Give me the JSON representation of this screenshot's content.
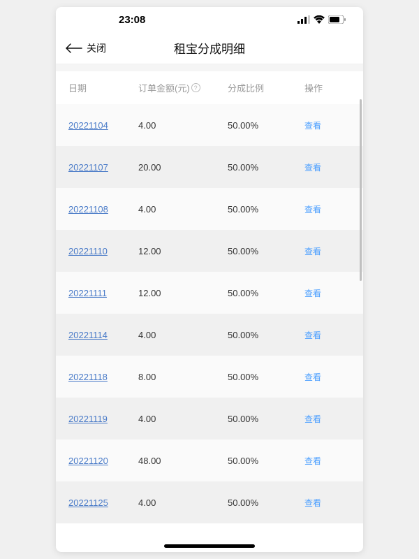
{
  "status_bar": {
    "time": "23:08"
  },
  "nav": {
    "close_label": "关闭",
    "title": "租宝分成明细"
  },
  "table": {
    "columns": {
      "date": "日期",
      "amount": "订单金额(元)",
      "ratio": "分成比例",
      "action": "操作"
    },
    "action_label": "查看",
    "rows": [
      {
        "date": "20221104",
        "amount": "4.00",
        "ratio": "50.00%"
      },
      {
        "date": "20221107",
        "amount": "20.00",
        "ratio": "50.00%"
      },
      {
        "date": "20221108",
        "amount": "4.00",
        "ratio": "50.00%"
      },
      {
        "date": "20221110",
        "amount": "12.00",
        "ratio": "50.00%"
      },
      {
        "date": "20221111",
        "amount": "12.00",
        "ratio": "50.00%"
      },
      {
        "date": "20221114",
        "amount": "4.00",
        "ratio": "50.00%"
      },
      {
        "date": "20221118",
        "amount": "8.00",
        "ratio": "50.00%"
      },
      {
        "date": "20221119",
        "amount": "4.00",
        "ratio": "50.00%"
      },
      {
        "date": "20221120",
        "amount": "48.00",
        "ratio": "50.00%"
      },
      {
        "date": "20221125",
        "amount": "4.00",
        "ratio": "50.00%"
      }
    ]
  },
  "colors": {
    "link": "#4a7bc8",
    "action": "#4a9eff",
    "header_text": "#999999",
    "row_alt_1": "#fafafa",
    "row_alt_2": "#f0f0f0"
  }
}
